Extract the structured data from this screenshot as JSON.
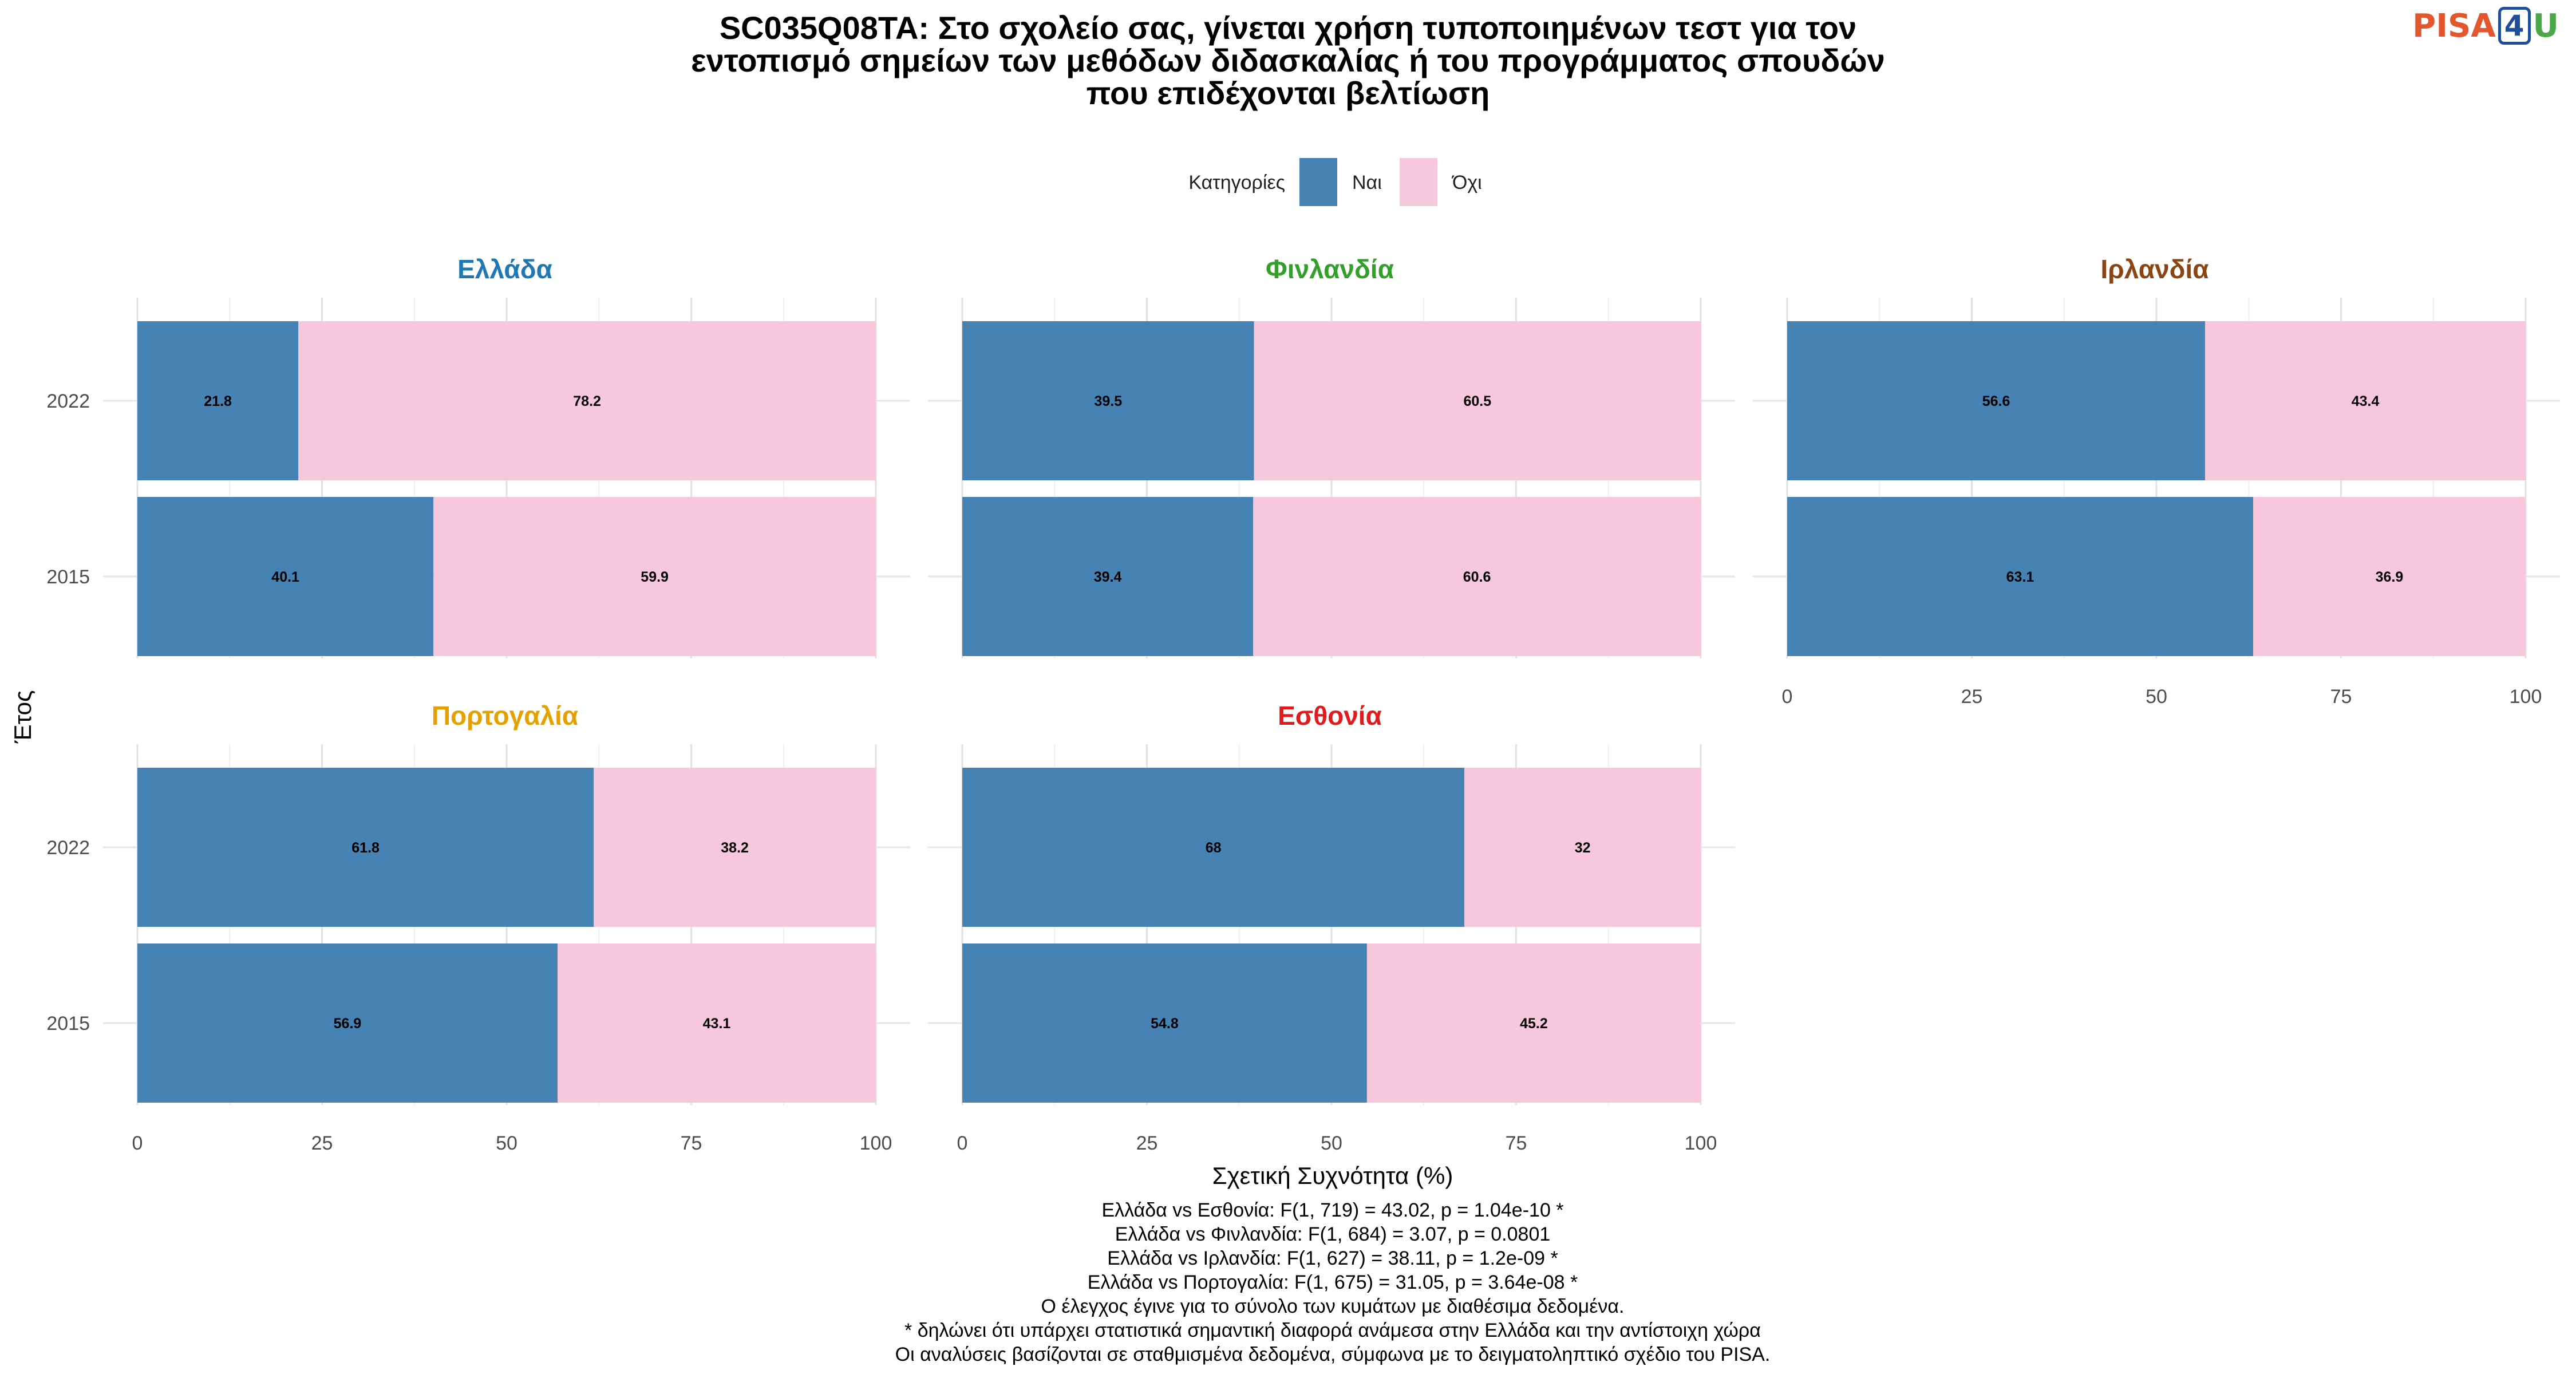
{
  "logo": {
    "part1": "PISA",
    "part2": "4",
    "part3": "U"
  },
  "chart_data": {
    "type": "bar",
    "orientation": "horizontal-stacked",
    "title": "SC035Q08TA: Στο σχολείο σας, γίνεται χρήση τυποποιημένων τεστ για τον εντοπισμό σημείων των μεθόδων διδασκαλίας ή του προγράμματος σπουδών που επιδέχονται βελτίωση",
    "title_lines": [
      "SC035Q08TA: Στο σχολείο σας, γίνεται χρήση τυποποιημένων τεστ για τον",
      "εντοπισμό σημείων των μεθόδων διδασκαλίας ή του προγράμματος σπουδών",
      "που επιδέχονται βελτίωση"
    ],
    "legend_title": "Κατηγορίες",
    "legend_position": "top",
    "series": [
      {
        "name": "Ναι",
        "color": "#4682b4"
      },
      {
        "name": "Όχι",
        "color": "#f7c7dc"
      }
    ],
    "xlabel": "Σχετική Συχνότητα (%)",
    "ylabel": "Έτος",
    "xlim": [
      0,
      100
    ],
    "xticks": [
      "0",
      "25",
      "50",
      "75",
      "100"
    ],
    "categories": [
      "2022",
      "2015"
    ],
    "grid": true,
    "panels": [
      {
        "country": "Ελλάδα",
        "color": "#1f78b4",
        "rows": [
          {
            "year": "2022",
            "values": [
              21.8,
              78.2
            ],
            "labels": [
              "21.8",
              "78.2"
            ]
          },
          {
            "year": "2015",
            "values": [
              40.1,
              59.9
            ],
            "labels": [
              "40.1",
              "59.9"
            ]
          }
        ]
      },
      {
        "country": "Φινλανδία",
        "color": "#33a02c",
        "rows": [
          {
            "year": "2022",
            "values": [
              39.5,
              60.5
            ],
            "labels": [
              "39.5",
              "60.5"
            ]
          },
          {
            "year": "2015",
            "values": [
              39.4,
              60.6
            ],
            "labels": [
              "39.4",
              "60.6"
            ]
          }
        ]
      },
      {
        "country": "Ιρλανδία",
        "color": "#8b4513",
        "rows": [
          {
            "year": "2022",
            "values": [
              56.6,
              43.4
            ],
            "labels": [
              "56.6",
              "43.4"
            ]
          },
          {
            "year": "2015",
            "values": [
              63.1,
              36.9
            ],
            "labels": [
              "63.1",
              "36.9"
            ]
          }
        ]
      },
      {
        "country": "Πορτογαλία",
        "color": "#e6a000",
        "rows": [
          {
            "year": "2022",
            "values": [
              61.8,
              38.2
            ],
            "labels": [
              "61.8",
              "38.2"
            ]
          },
          {
            "year": "2015",
            "values": [
              56.9,
              43.1
            ],
            "labels": [
              "56.9",
              "43.1"
            ]
          }
        ]
      },
      {
        "country": "Εσθονία",
        "color": "#e31a1c",
        "rows": [
          {
            "year": "2022",
            "values": [
              68,
              32
            ],
            "labels": [
              "68",
              "32"
            ]
          },
          {
            "year": "2015",
            "values": [
              54.8,
              45.2
            ],
            "labels": [
              "54.8",
              "45.2"
            ]
          }
        ]
      }
    ],
    "annotations": [
      "Ελλάδα vs Εσθονία: F(1, 719) = 43.02, p = 1.04e-10 *",
      "Ελλάδα vs Φινλανδία: F(1, 684) = 3.07, p = 0.0801",
      "Ελλάδα vs Ιρλανδία: F(1, 627) = 38.11, p = 1.2e-09 *",
      "Ελλάδα vs Πορτογαλία: F(1, 675) = 31.05, p = 3.64e-08 *",
      "Ο έλεγχος έγινε για το σύνολο των κυμάτων με διαθέσιμα δεδομένα.",
      "* δηλώνει ότι υπάρχει στατιστικά σημαντική διαφορά ανάμεσα στην Ελλάδα και την αντίστοιχη χώρα",
      "Οι αναλύσεις βασίζονται σε σταθμισμένα δεδομένα, σύμφωνα με το δειγματοληπτικό σχέδιο του PISA."
    ]
  }
}
